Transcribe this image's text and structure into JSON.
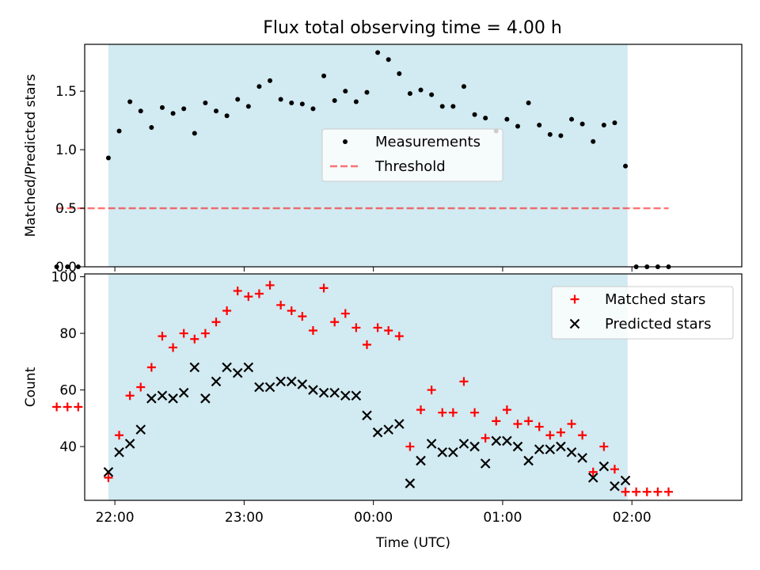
{
  "title": "Flux total observing time = 4.00 h",
  "colors": {
    "shade": "#add8e6",
    "measurement": "#000000",
    "threshold": "#ff0000",
    "matched": "#ff0000",
    "predicted": "#000000"
  },
  "chart_data": [
    {
      "type": "scatter",
      "ylabel": "Matched/Predicted stars",
      "xlim": [
        "21:46",
        "02:51"
      ],
      "ylim": [
        0,
        1.9
      ],
      "yticks": [
        "0.0",
        "0.5",
        "1.0",
        "1.5"
      ],
      "shaded_interval": [
        "21:57",
        "01:58"
      ],
      "legend": {
        "placement": "center",
        "entries": [
          "Measurements",
          "Threshold"
        ]
      },
      "threshold": {
        "name": "Threshold",
        "value": 0.5,
        "x_start": "21:33",
        "x_end": "02:17"
      },
      "series": [
        {
          "name": "Measurements",
          "marker": "dot",
          "points": [
            [
              "21:33",
              0.0
            ],
            [
              "21:38",
              0.0
            ],
            [
              "21:43",
              0.0
            ],
            [
              "21:57",
              0.93
            ],
            [
              "22:02",
              1.16
            ],
            [
              "22:07",
              1.41
            ],
            [
              "22:12",
              1.33
            ],
            [
              "22:17",
              1.19
            ],
            [
              "22:22",
              1.36
            ],
            [
              "22:27",
              1.31
            ],
            [
              "22:32",
              1.35
            ],
            [
              "22:37",
              1.14
            ],
            [
              "22:42",
              1.4
            ],
            [
              "22:47",
              1.33
            ],
            [
              "22:52",
              1.29
            ],
            [
              "22:57",
              1.43
            ],
            [
              "23:02",
              1.37
            ],
            [
              "23:07",
              1.54
            ],
            [
              "23:12",
              1.59
            ],
            [
              "23:17",
              1.43
            ],
            [
              "23:22",
              1.4
            ],
            [
              "23:27",
              1.39
            ],
            [
              "23:32",
              1.35
            ],
            [
              "23:37",
              1.63
            ],
            [
              "23:42",
              1.42
            ],
            [
              "23:47",
              1.5
            ],
            [
              "23:52",
              1.41
            ],
            [
              "23:57",
              1.49
            ],
            [
              "00:02",
              1.83
            ],
            [
              "00:07",
              1.77
            ],
            [
              "00:12",
              1.65
            ],
            [
              "00:17",
              1.48
            ],
            [
              "00:22",
              1.51
            ],
            [
              "00:27",
              1.47
            ],
            [
              "00:32",
              1.37
            ],
            [
              "00:37",
              1.37
            ],
            [
              "00:42",
              1.54
            ],
            [
              "00:47",
              1.3
            ],
            [
              "00:52",
              1.27
            ],
            [
              "00:57",
              1.16
            ],
            [
              "01:02",
              1.26
            ],
            [
              "01:07",
              1.2
            ],
            [
              "01:12",
              1.4
            ],
            [
              "01:17",
              1.21
            ],
            [
              "01:22",
              1.13
            ],
            [
              "01:27",
              1.12
            ],
            [
              "01:32",
              1.26
            ],
            [
              "01:37",
              1.22
            ],
            [
              "01:42",
              1.07
            ],
            [
              "01:47",
              1.21
            ],
            [
              "01:52",
              1.23
            ],
            [
              "01:57",
              0.86
            ],
            [
              "02:02",
              0.0
            ],
            [
              "02:07",
              0.0
            ],
            [
              "02:12",
              0.0
            ],
            [
              "02:17",
              0.0
            ]
          ]
        }
      ]
    },
    {
      "type": "scatter",
      "xlabel": "Time (UTC)",
      "ylabel": "Count",
      "xlim": [
        "21:46",
        "02:51"
      ],
      "ylim": [
        21,
        101
      ],
      "xticks": [
        "22:00",
        "23:00",
        "00:00",
        "01:00",
        "02:00"
      ],
      "yticks": [
        "40",
        "60",
        "80",
        "100"
      ],
      "shaded_interval": [
        "21:57",
        "01:58"
      ],
      "legend": {
        "placement": "upper right",
        "entries": [
          "Matched stars",
          "Predicted stars"
        ]
      },
      "series": [
        {
          "name": "Matched stars",
          "marker": "plus",
          "points": [
            [
              "21:33",
              54
            ],
            [
              "21:38",
              54
            ],
            [
              "21:43",
              54
            ],
            [
              "21:57",
              29
            ],
            [
              "22:02",
              44
            ],
            [
              "22:07",
              58
            ],
            [
              "22:12",
              61
            ],
            [
              "22:17",
              68
            ],
            [
              "22:22",
              79
            ],
            [
              "22:27",
              75
            ],
            [
              "22:32",
              80
            ],
            [
              "22:37",
              78
            ],
            [
              "22:42",
              80
            ],
            [
              "22:47",
              84
            ],
            [
              "22:52",
              88
            ],
            [
              "22:57",
              95
            ],
            [
              "23:02",
              93
            ],
            [
              "23:07",
              94
            ],
            [
              "23:12",
              97
            ],
            [
              "23:17",
              90
            ],
            [
              "23:22",
              88
            ],
            [
              "23:27",
              86
            ],
            [
              "23:32",
              81
            ],
            [
              "23:37",
              96
            ],
            [
              "23:42",
              84
            ],
            [
              "23:47",
              87
            ],
            [
              "23:52",
              82
            ],
            [
              "23:57",
              76
            ],
            [
              "00:02",
              82
            ],
            [
              "00:07",
              81
            ],
            [
              "00:12",
              79
            ],
            [
              "00:17",
              40
            ],
            [
              "00:22",
              53
            ],
            [
              "00:27",
              60
            ],
            [
              "00:32",
              52
            ],
            [
              "00:37",
              52
            ],
            [
              "00:42",
              63
            ],
            [
              "00:47",
              52
            ],
            [
              "00:52",
              43
            ],
            [
              "00:57",
              49
            ],
            [
              "01:02",
              53
            ],
            [
              "01:07",
              48
            ],
            [
              "01:12",
              49
            ],
            [
              "01:17",
              47
            ],
            [
              "01:22",
              44
            ],
            [
              "01:27",
              45
            ],
            [
              "01:32",
              48
            ],
            [
              "01:37",
              44
            ],
            [
              "01:42",
              31
            ],
            [
              "01:47",
              40
            ],
            [
              "01:52",
              32
            ],
            [
              "01:57",
              24
            ],
            [
              "02:02",
              24
            ],
            [
              "02:07",
              24
            ],
            [
              "02:12",
              24
            ],
            [
              "02:17",
              24
            ]
          ]
        },
        {
          "name": "Predicted stars",
          "marker": "x",
          "points": [
            [
              "21:57",
              31
            ],
            [
              "22:02",
              38
            ],
            [
              "22:07",
              41
            ],
            [
              "22:12",
              46
            ],
            [
              "22:17",
              57
            ],
            [
              "22:22",
              58
            ],
            [
              "22:27",
              57
            ],
            [
              "22:32",
              59
            ],
            [
              "22:37",
              68
            ],
            [
              "22:42",
              57
            ],
            [
              "22:47",
              63
            ],
            [
              "22:52",
              68
            ],
            [
              "22:57",
              66
            ],
            [
              "23:02",
              68
            ],
            [
              "23:07",
              61
            ],
            [
              "23:12",
              61
            ],
            [
              "23:17",
              63
            ],
            [
              "23:22",
              63
            ],
            [
              "23:27",
              62
            ],
            [
              "23:32",
              60
            ],
            [
              "23:37",
              59
            ],
            [
              "23:42",
              59
            ],
            [
              "23:47",
              58
            ],
            [
              "23:52",
              58
            ],
            [
              "23:57",
              51
            ],
            [
              "00:02",
              45
            ],
            [
              "00:07",
              46
            ],
            [
              "00:12",
              48
            ],
            [
              "00:17",
              27
            ],
            [
              "00:22",
              35
            ],
            [
              "00:27",
              41
            ],
            [
              "00:32",
              38
            ],
            [
              "00:37",
              38
            ],
            [
              "00:42",
              41
            ],
            [
              "00:47",
              40
            ],
            [
              "00:52",
              34
            ],
            [
              "00:57",
              42
            ],
            [
              "01:02",
              42
            ],
            [
              "01:07",
              40
            ],
            [
              "01:12",
              35
            ],
            [
              "01:17",
              39
            ],
            [
              "01:22",
              39
            ],
            [
              "01:27",
              40
            ],
            [
              "01:32",
              38
            ],
            [
              "01:37",
              36
            ],
            [
              "01:42",
              29
            ],
            [
              "01:47",
              33
            ],
            [
              "01:52",
              26
            ],
            [
              "01:57",
              28
            ]
          ]
        }
      ]
    }
  ]
}
